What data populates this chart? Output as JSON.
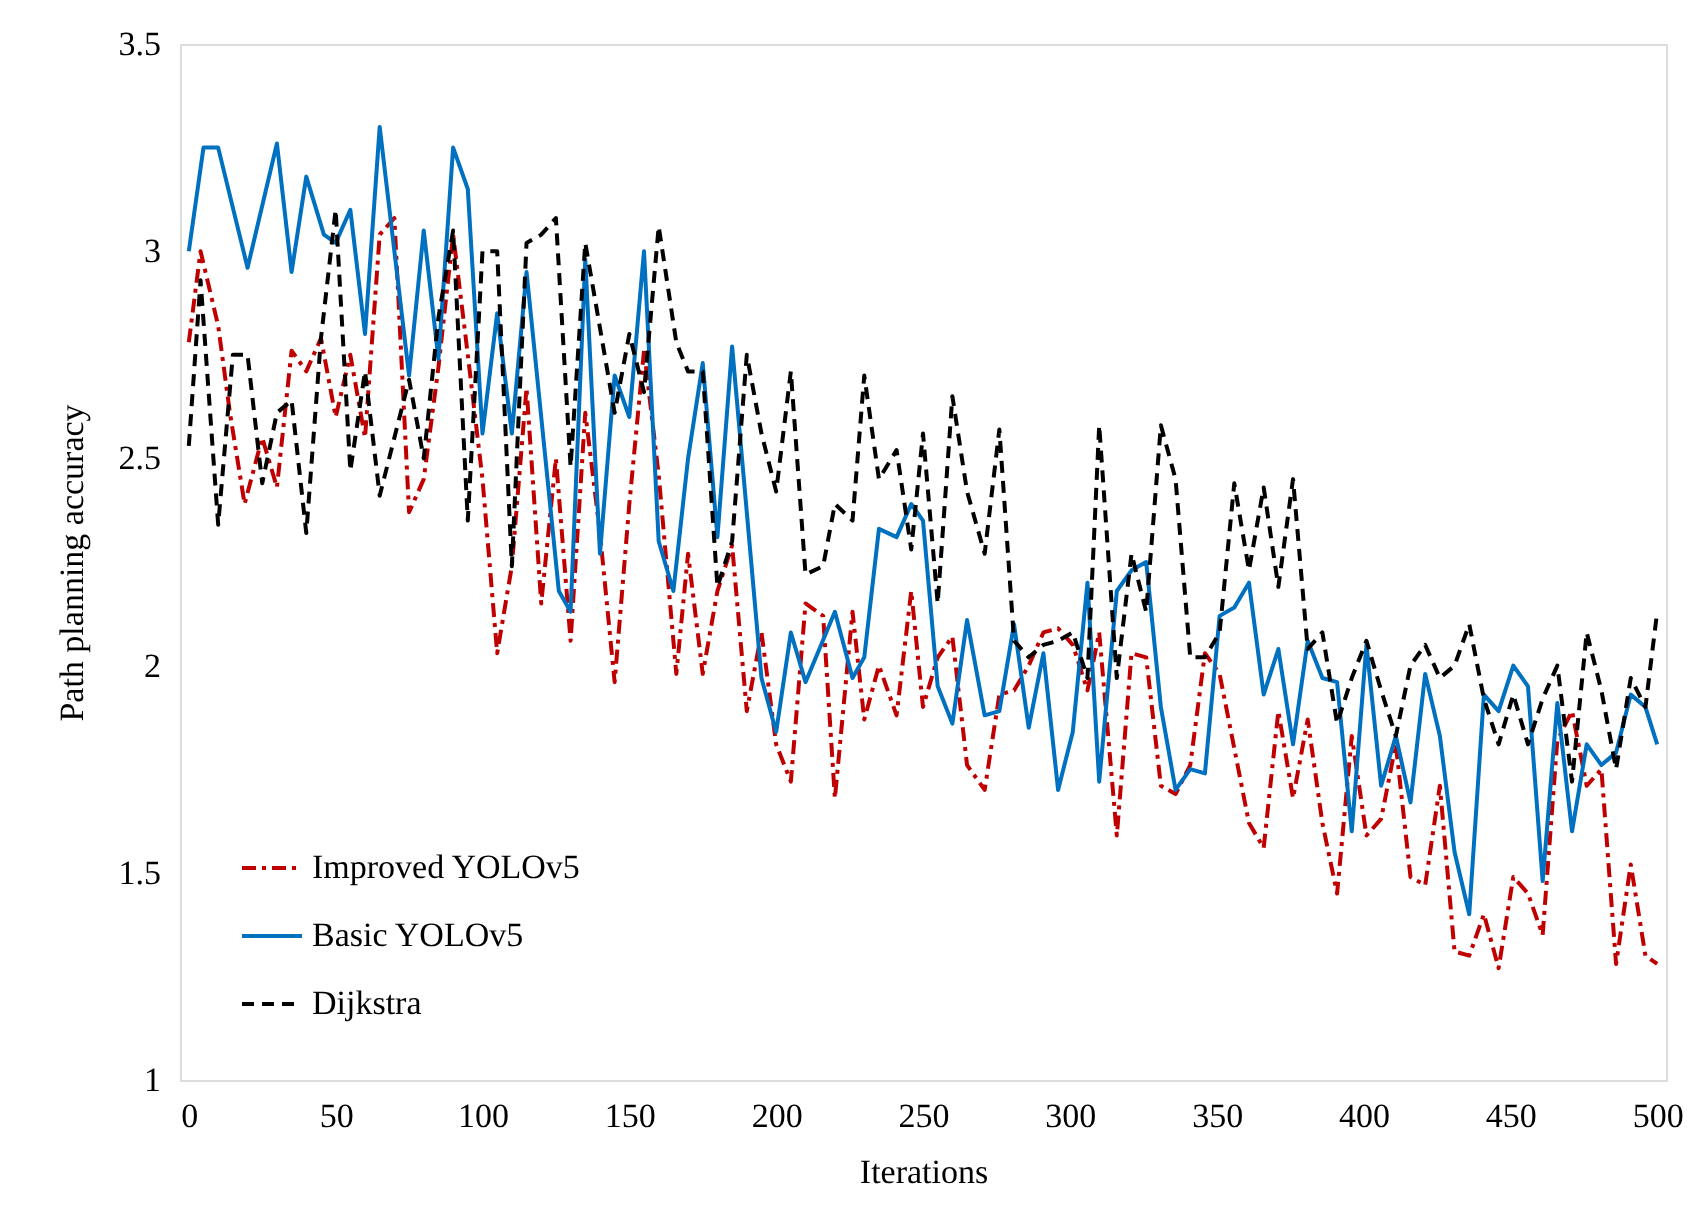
{
  "chart_data": {
    "type": "line",
    "xlabel": "Iterations",
    "ylabel": "Path planning accuracy",
    "xlim": [
      -3,
      503
    ],
    "ylim": [
      1,
      3.5
    ],
    "xticks": [
      0,
      50,
      100,
      150,
      200,
      250,
      300,
      350,
      400,
      450,
      500
    ],
    "yticks": [
      1,
      1.5,
      2,
      2.5,
      3,
      3.5
    ],
    "grid": false,
    "legend": "bottom left",
    "marker": "none",
    "series": [
      {
        "name": "Improved YOLOv5",
        "color": "#c00000",
        "line_style": "dotted",
        "x": [
          0,
          4,
          10,
          14,
          19,
          25,
          30,
          35,
          40,
          45,
          50,
          55,
          60,
          65,
          70,
          75,
          80,
          85,
          90,
          95,
          100,
          105,
          110,
          115,
          120,
          125,
          130,
          135,
          140,
          145,
          150,
          155,
          160,
          166,
          170,
          175,
          180,
          185,
          190,
          195,
          200,
          205,
          210,
          216,
          220,
          226,
          230,
          235,
          241,
          246,
          250,
          255,
          260,
          265,
          271,
          276,
          281,
          286,
          291,
          296,
          301,
          306,
          310,
          316,
          321,
          326,
          331,
          336,
          341,
          346,
          351,
          361,
          366,
          371,
          376,
          381,
          386,
          391,
          396,
          401,
          406,
          411,
          416,
          421,
          426,
          431,
          436,
          441,
          446,
          451,
          456,
          461,
          466,
          471,
          476,
          481,
          486,
          491,
          496,
          500
        ],
        "values": [
          2.78,
          3.0,
          2.82,
          2.61,
          2.39,
          2.55,
          2.43,
          2.76,
          2.71,
          2.79,
          2.6,
          2.75,
          2.55,
          3.04,
          3.08,
          2.37,
          2.45,
          2.72,
          3.04,
          2.75,
          2.45,
          2.03,
          2.24,
          2.67,
          2.15,
          2.5,
          2.06,
          2.61,
          2.32,
          1.96,
          2.39,
          2.76,
          2.46,
          1.98,
          2.27,
          1.98,
          2.18,
          2.29,
          1.89,
          2.08,
          1.81,
          1.72,
          2.15,
          2.12,
          1.68,
          2.13,
          1.87,
          2.0,
          1.88,
          2.18,
          1.9,
          2.02,
          2.07,
          1.76,
          1.7,
          1.93,
          1.94,
          2.0,
          2.08,
          2.09,
          2.05,
          1.94,
          2.08,
          1.59,
          2.03,
          2.02,
          1.71,
          1.69,
          1.76,
          2.03,
          1.98,
          1.62,
          1.56,
          1.89,
          1.68,
          1.87,
          1.62,
          1.45,
          1.83,
          1.59,
          1.63,
          1.81,
          1.49,
          1.47,
          1.71,
          1.31,
          1.3,
          1.4,
          1.27,
          1.49,
          1.45,
          1.35,
          1.82,
          1.89,
          1.71,
          1.75,
          1.28,
          1.52,
          1.3,
          1.28
        ]
      },
      {
        "name": "Basic YOLOv5",
        "color": "#0070c0",
        "line_style": "solid",
        "x": [
          0,
          5,
          10,
          20,
          30,
          35,
          40,
          46,
          50,
          55,
          60,
          65,
          75,
          80,
          85,
          90,
          95,
          100,
          105,
          110,
          115,
          126,
          130,
          135,
          140,
          145,
          150,
          155,
          160,
          165,
          170,
          175,
          180,
          185,
          195,
          200,
          205,
          210,
          220,
          226,
          230,
          235,
          241,
          246,
          250,
          255,
          260,
          265,
          271,
          276,
          281,
          286,
          291,
          296,
          301,
          306,
          310,
          316,
          321,
          326,
          331,
          336,
          341,
          346,
          351,
          356,
          361,
          366,
          371,
          376,
          381,
          386,
          391,
          396,
          401,
          406,
          411,
          416,
          421,
          426,
          431,
          436,
          441,
          446,
          451,
          456,
          461,
          466,
          471,
          476,
          481,
          486,
          491,
          496,
          500
        ],
        "values": [
          3.0,
          3.25,
          3.25,
          2.96,
          3.26,
          2.95,
          3.18,
          3.04,
          3.02,
          3.1,
          2.8,
          3.3,
          2.7,
          3.05,
          2.74,
          3.25,
          3.15,
          2.56,
          2.85,
          2.56,
          2.95,
          2.18,
          2.13,
          2.98,
          2.27,
          2.7,
          2.6,
          3.0,
          2.3,
          2.18,
          2.5,
          2.73,
          2.31,
          2.77,
          1.97,
          1.84,
          2.08,
          1.96,
          2.13,
          1.97,
          2.02,
          2.33,
          2.31,
          2.39,
          2.35,
          1.95,
          1.86,
          2.11,
          1.88,
          1.89,
          2.1,
          1.85,
          2.03,
          1.7,
          1.84,
          2.2,
          1.72,
          2.18,
          2.23,
          2.25,
          1.9,
          1.7,
          1.75,
          1.74,
          2.12,
          2.14,
          2.2,
          1.93,
          2.04,
          1.81,
          2.06,
          1.97,
          1.96,
          1.6,
          2.05,
          1.71,
          1.83,
          1.67,
          1.98,
          1.83,
          1.55,
          1.4,
          1.93,
          1.89,
          2.0,
          1.95,
          1.48,
          1.91,
          1.6,
          1.81,
          1.76,
          1.79,
          1.93,
          1.9,
          1.81
        ]
      },
      {
        "name": "Dijkstra",
        "color": "#000000",
        "line_style": "dashed",
        "x": [
          0,
          4,
          10,
          15,
          20,
          25,
          30,
          35,
          40,
          45,
          50,
          55,
          60,
          65,
          75,
          80,
          85,
          90,
          95,
          100,
          105,
          110,
          115,
          120,
          125,
          130,
          135,
          145,
          150,
          155,
          160,
          166,
          170,
          175,
          180,
          185,
          190,
          195,
          200,
          205,
          210,
          216,
          220,
          226,
          230,
          235,
          241,
          246,
          250,
          255,
          260,
          265,
          271,
          276,
          281,
          286,
          291,
          296,
          301,
          306,
          310,
          316,
          321,
          326,
          331,
          336,
          341,
          346,
          351,
          356,
          361,
          366,
          371,
          376,
          381,
          386,
          391,
          396,
          401,
          406,
          411,
          416,
          421,
          426,
          431,
          436,
          441,
          446,
          451,
          456,
          461,
          466,
          471,
          476,
          481,
          486,
          491,
          496,
          500
        ],
        "values": [
          2.53,
          2.93,
          2.34,
          2.75,
          2.75,
          2.44,
          2.61,
          2.64,
          2.32,
          2.79,
          3.1,
          2.47,
          2.71,
          2.41,
          2.69,
          2.5,
          2.84,
          3.05,
          2.35,
          3.0,
          3.0,
          2.24,
          3.02,
          3.04,
          3.08,
          2.48,
          3.02,
          2.61,
          2.8,
          2.66,
          3.06,
          2.78,
          2.71,
          2.71,
          2.19,
          2.3,
          2.75,
          2.56,
          2.42,
          2.71,
          2.22,
          2.24,
          2.39,
          2.35,
          2.7,
          2.45,
          2.52,
          2.28,
          2.56,
          2.15,
          2.65,
          2.42,
          2.27,
          2.57,
          2.06,
          2.02,
          2.05,
          2.06,
          2.08,
          1.97,
          2.58,
          1.97,
          2.27,
          2.13,
          2.58,
          2.45,
          2.02,
          2.02,
          2.08,
          2.44,
          2.23,
          2.43,
          2.19,
          2.45,
          2.04,
          2.08,
          1.86,
          1.97,
          2.06,
          1.94,
          1.83,
          2.0,
          2.05,
          1.97,
          2.0,
          2.1,
          1.92,
          1.81,
          1.93,
          1.81,
          1.92,
          2.0,
          1.72,
          2.08,
          1.94,
          1.75,
          1.97,
          1.9,
          2.13
        ]
      }
    ]
  }
}
